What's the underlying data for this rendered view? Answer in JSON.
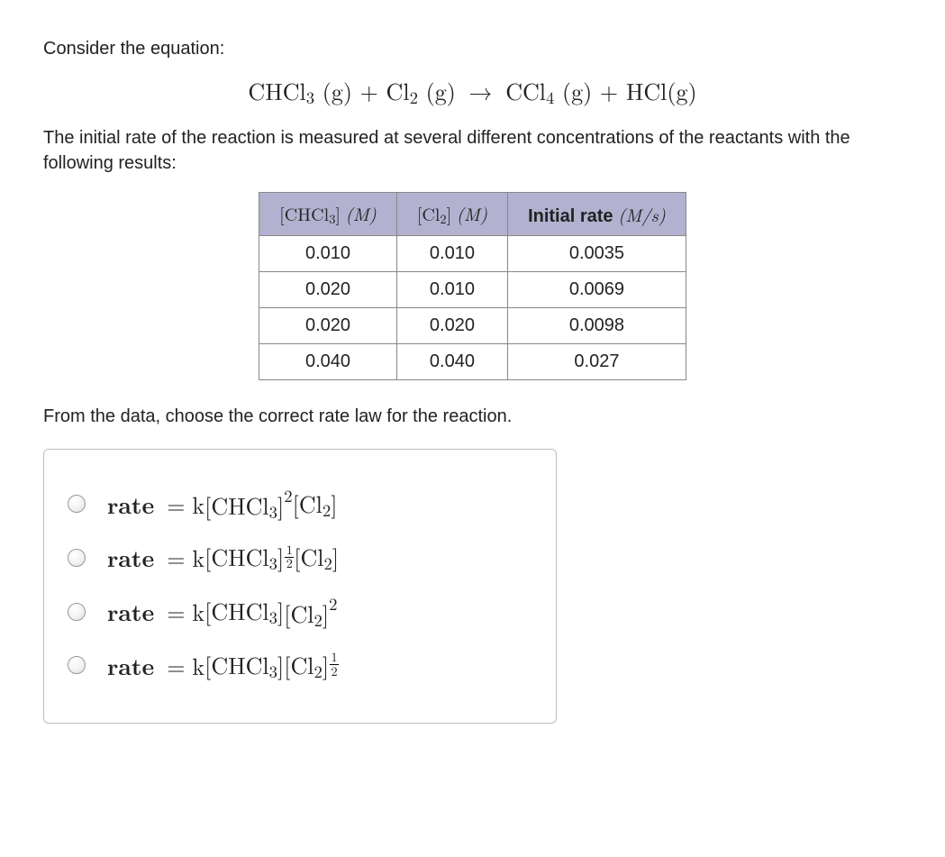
{
  "intro": "Consider the equation:",
  "equation": {
    "lhs_1": "CHCl",
    "lhs_1_sub": "3",
    "phase": "(g)",
    "plus": "+",
    "lhs_2": "Cl",
    "lhs_2_sub": "2",
    "arrow": "→",
    "rhs_1": "CCl",
    "rhs_1_sub": "4",
    "rhs_2": "HCl"
  },
  "description": "The initial rate of the reaction is measured at several different concentrations of the reactants with the following results:",
  "table": {
    "headers": {
      "c1": {
        "species": "CHCl",
        "sub": "3",
        "unit": "M"
      },
      "c2": {
        "species": "Cl",
        "sub": "2",
        "unit": "M"
      },
      "c3": {
        "label": "Initial rate",
        "unit": "M/s"
      }
    },
    "rows": [
      {
        "c1": "0.010",
        "c2": "0.010",
        "c3": "0.0035"
      },
      {
        "c1": "0.020",
        "c2": "0.010",
        "c3": "0.0069"
      },
      {
        "c1": "0.020",
        "c2": "0.020",
        "c3": "0.0098"
      },
      {
        "c1": "0.040",
        "c2": "0.040",
        "c3": "0.027"
      }
    ],
    "colors": {
      "header_bg": "#b2b1cf",
      "border": "#888888"
    }
  },
  "prompt": "From the data, choose the correct rate law for the reaction.",
  "options_common": {
    "rate_label": "rate",
    "equals": "=",
    "k": "k",
    "chcl3_bracket": "[CHCl",
    "chcl3_sub": "3",
    "close_bracket": "]",
    "cl2_bracket": "[Cl",
    "cl2_sub": "2"
  },
  "options": [
    {
      "exp_chcl3": {
        "type": "int",
        "value": "2"
      },
      "exp_cl2": {
        "type": "none"
      }
    },
    {
      "exp_chcl3": {
        "type": "frac",
        "num": "1",
        "den": "2"
      },
      "exp_cl2": {
        "type": "none"
      }
    },
    {
      "exp_chcl3": {
        "type": "none"
      },
      "exp_cl2": {
        "type": "int",
        "value": "2"
      }
    },
    {
      "exp_chcl3": {
        "type": "none"
      },
      "exp_cl2": {
        "type": "frac",
        "num": "1",
        "den": "2"
      }
    }
  ]
}
